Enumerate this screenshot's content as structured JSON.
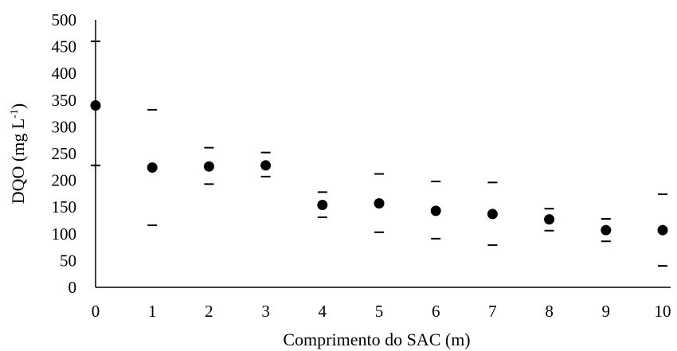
{
  "chart_data": {
    "type": "scatter",
    "title": "",
    "xlabel": "Comprimento do SAC (m)",
    "ylabel_main": "DQO (mg L",
    "ylabel_sup": "-1",
    "ylabel_close": ")",
    "xlim": [
      0,
      10
    ],
    "ylim": [
      0,
      500
    ],
    "x_ticks": [
      0,
      1,
      2,
      3,
      4,
      5,
      6,
      7,
      8,
      9,
      10
    ],
    "y_ticks": [
      0,
      50,
      100,
      150,
      200,
      250,
      300,
      350,
      400,
      450,
      500
    ],
    "x_tick_labels": [
      "0",
      "1",
      "2",
      "3",
      "4",
      "5",
      "6",
      "7",
      "8",
      "9",
      "10"
    ],
    "y_tick_labels": [
      "0",
      "50",
      "100",
      "150",
      "200",
      "250",
      "300",
      "350",
      "400",
      "450",
      "500"
    ],
    "grid": false,
    "legend": "none",
    "points": [
      {
        "x": 0,
        "y": 340,
        "upper": 460,
        "lower": 228
      },
      {
        "x": 1,
        "y": 224,
        "upper": 332,
        "lower": 116
      },
      {
        "x": 2,
        "y": 226,
        "upper": 261,
        "lower": 193
      },
      {
        "x": 3,
        "y": 228,
        "upper": 252,
        "lower": 207
      },
      {
        "x": 4,
        "y": 154,
        "upper": 178,
        "lower": 131
      },
      {
        "x": 5,
        "y": 157,
        "upper": 212,
        "lower": 103
      },
      {
        "x": 6,
        "y": 143,
        "upper": 198,
        "lower": 91
      },
      {
        "x": 7,
        "y": 137,
        "upper": 196,
        "lower": 79
      },
      {
        "x": 8,
        "y": 127,
        "upper": 147,
        "lower": 106
      },
      {
        "x": 9,
        "y": 107,
        "upper": 128,
        "lower": 86
      },
      {
        "x": 10,
        "y": 107,
        "upper": 174,
        "lower": 40
      }
    ],
    "colors": {
      "marker": "#000000",
      "axis": "#000000",
      "error_bar": "#000000"
    }
  }
}
